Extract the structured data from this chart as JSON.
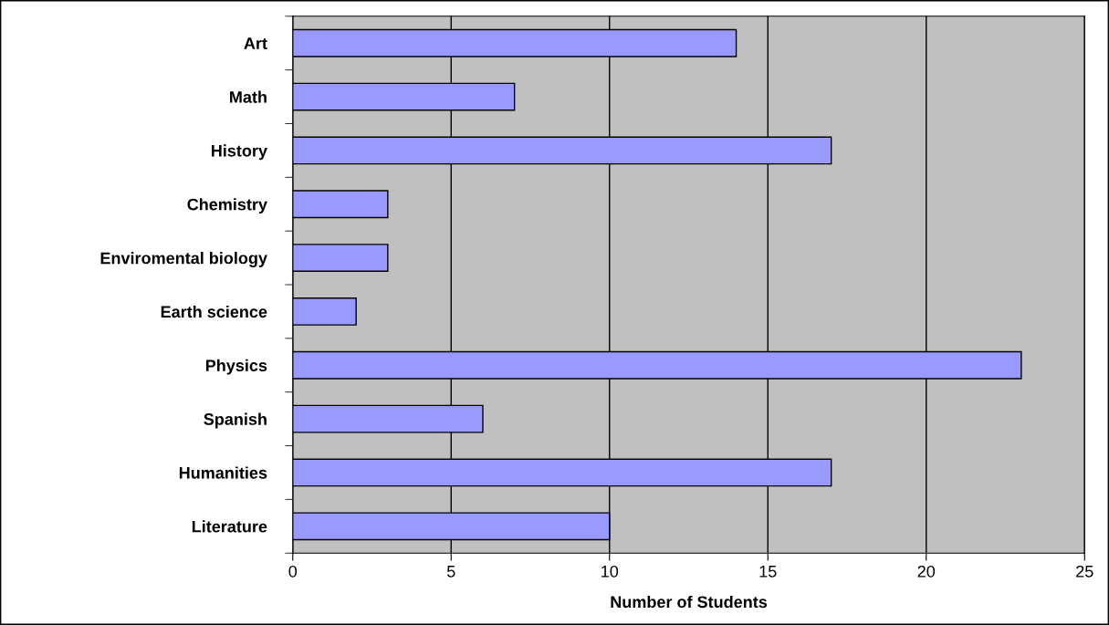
{
  "chart_data": {
    "type": "bar",
    "orientation": "horizontal",
    "xlabel": "Number of Students",
    "categories": [
      "Art",
      "Math",
      "History",
      "Chemistry",
      "Enviromental biology",
      "Earth science",
      "Physics",
      "Spanish",
      "Humanities",
      "Literature"
    ],
    "values": [
      14,
      7,
      17,
      3,
      3,
      2,
      23,
      6,
      17,
      10
    ],
    "color": "#9999ff",
    "xlim": [
      0,
      25
    ],
    "xticks": [
      0,
      5,
      10,
      15,
      20,
      25
    ],
    "grid": "x"
  }
}
